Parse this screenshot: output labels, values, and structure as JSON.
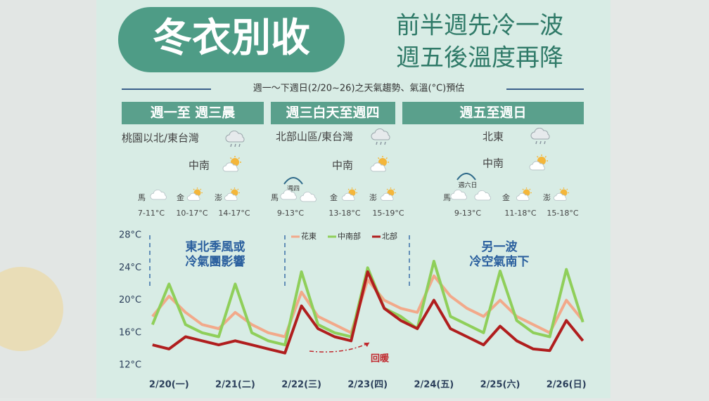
{
  "header": {
    "title": "冬衣別收",
    "subtitle": [
      "前半週先冷一波",
      "週五後溫度再降"
    ],
    "caption": "週一～下週日(2/20~26)之天氣趨勢、氣溫(°C)預估"
  },
  "panels": [
    {
      "heading": "週一至 週三晨",
      "regions": [
        "桃園以北/東台灣",
        "中南"
      ],
      "islands": [
        {
          "name": "馬",
          "temp": "7-11°C"
        },
        {
          "name": "金",
          "temp": "10-17°C"
        },
        {
          "name": "澎",
          "temp": "14-17°C"
        }
      ]
    },
    {
      "heading": "週三白天至週四",
      "regions": [
        "北部山區/東台灣",
        "中南"
      ],
      "note": "週四",
      "islands": [
        {
          "name": "馬",
          "temp": "9-13°C"
        },
        {
          "name": "金",
          "temp": "13-18°C"
        },
        {
          "name": "澎",
          "temp": "15-19°C"
        }
      ]
    },
    {
      "heading": "週五至週日",
      "regions": [
        "北東",
        "中南"
      ],
      "note": "週六日",
      "islands": [
        {
          "name": "馬",
          "temp": "9-13°C"
        },
        {
          "name": "金",
          "temp": "11-18°C"
        },
        {
          "name": "澎",
          "temp": "15-18°C"
        }
      ]
    }
  ],
  "chart_data": {
    "type": "line",
    "x": [
      -0.25,
      0,
      0.25,
      0.5,
      0.75,
      1,
      1.25,
      1.5,
      1.75,
      2,
      2.25,
      2.5,
      2.75,
      3,
      3.25,
      3.5,
      3.75,
      4,
      4.25,
      4.5,
      4.75,
      5,
      5.25,
      5.5,
      5.75,
      6,
      6.25
    ],
    "series": [
      {
        "name": "花東",
        "color": "#f2a98a",
        "values": [
          18,
          20.5,
          18.5,
          17,
          16.5,
          18.5,
          17,
          16,
          15.5,
          21,
          18,
          17,
          16,
          22.5,
          20,
          19,
          18.5,
          23,
          20.5,
          19,
          18,
          20,
          18,
          17,
          16,
          20,
          17.5
        ]
      },
      {
        "name": "中南部",
        "color": "#8fcf5a",
        "values": [
          17,
          22,
          17,
          16,
          15.5,
          22,
          16,
          15,
          14.5,
          23.5,
          17,
          16,
          15.5,
          24,
          19,
          18,
          16.5,
          24.8,
          18,
          17,
          16,
          23.6,
          17.5,
          16,
          15.5,
          23.8,
          17.3
        ]
      },
      {
        "name": "北部",
        "color": "#b01e1e",
        "values": [
          14.5,
          14,
          15.5,
          15,
          14.5,
          15,
          14.5,
          14,
          13.5,
          19.3,
          16.5,
          15.5,
          15,
          23.5,
          19,
          17.5,
          16.5,
          20,
          16.5,
          15.5,
          14.5,
          16.8,
          15,
          14,
          13.8,
          17.5,
          15
        ]
      }
    ],
    "xlim": [
      -0.29,
      6.2
    ],
    "xticks": [
      {
        "value": 0,
        "label": "2/20(一)"
      },
      {
        "value": 1,
        "label": "2/21(二)"
      },
      {
        "value": 2,
        "label": "2/22(三)"
      },
      {
        "value": 3,
        "label": "2/23(四)"
      },
      {
        "value": 4,
        "label": "2/24(五)"
      },
      {
        "value": 5,
        "label": "2/25(六)"
      },
      {
        "value": 6,
        "label": "2/26(日)"
      }
    ],
    "ylim": [
      12,
      28
    ],
    "yticks": [
      {
        "value": 12,
        "label": "12°C"
      },
      {
        "value": 16,
        "label": "16°C"
      },
      {
        "value": 20,
        "label": "20°C"
      },
      {
        "value": 24,
        "label": "24°C"
      },
      {
        "value": 28,
        "label": "28°C"
      }
    ],
    "annotations": [
      [
        "東北季風或",
        "冷氣團影響"
      ],
      [
        "另一波",
        "冷空氣南下"
      ],
      [
        "回暖"
      ]
    ]
  }
}
